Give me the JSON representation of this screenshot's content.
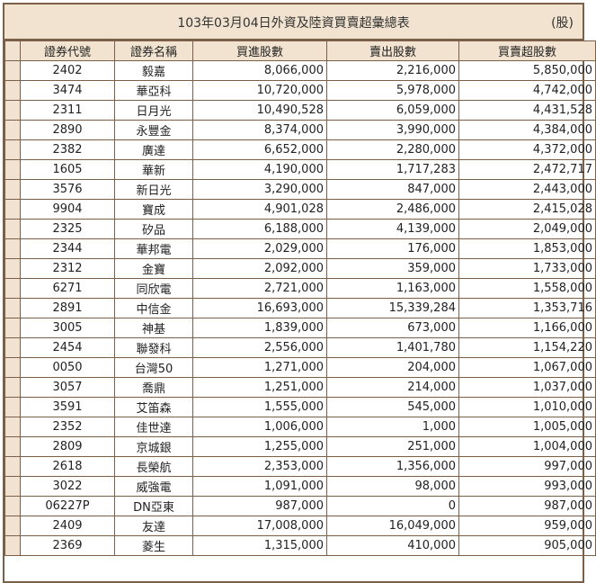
{
  "title": "103年03月04日外資及陸資買賣超彙總表",
  "unit": "(股)",
  "columns": [
    "證券代號",
    "證券名稱",
    "買進股數",
    "賣出股數",
    "買賣超股數"
  ],
  "rows": [
    {
      "code": "2402",
      "name": "毅嘉",
      "buy": "8,066,000",
      "sell": "2,216,000",
      "net": "5,850,000"
    },
    {
      "code": "3474",
      "name": "華亞科",
      "buy": "10,720,000",
      "sell": "5,978,000",
      "net": "4,742,000"
    },
    {
      "code": "2311",
      "name": "日月光",
      "buy": "10,490,528",
      "sell": "6,059,000",
      "net": "4,431,528"
    },
    {
      "code": "2890",
      "name": "永豐金",
      "buy": "8,374,000",
      "sell": "3,990,000",
      "net": "4,384,000"
    },
    {
      "code": "2382",
      "name": "廣達",
      "buy": "6,652,000",
      "sell": "2,280,000",
      "net": "4,372,000"
    },
    {
      "code": "1605",
      "name": "華新",
      "buy": "4,190,000",
      "sell": "1,717,283",
      "net": "2,472,717"
    },
    {
      "code": "3576",
      "name": "新日光",
      "buy": "3,290,000",
      "sell": "847,000",
      "net": "2,443,000"
    },
    {
      "code": "9904",
      "name": "寶成",
      "buy": "4,901,028",
      "sell": "2,486,000",
      "net": "2,415,028"
    },
    {
      "code": "2325",
      "name": "矽品",
      "buy": "6,188,000",
      "sell": "4,139,000",
      "net": "2,049,000"
    },
    {
      "code": "2344",
      "name": "華邦電",
      "buy": "2,029,000",
      "sell": "176,000",
      "net": "1,853,000"
    },
    {
      "code": "2312",
      "name": "金寶",
      "buy": "2,092,000",
      "sell": "359,000",
      "net": "1,733,000"
    },
    {
      "code": "6271",
      "name": "同欣電",
      "buy": "2,721,000",
      "sell": "1,163,000",
      "net": "1,558,000"
    },
    {
      "code": "2891",
      "name": "中信金",
      "buy": "16,693,000",
      "sell": "15,339,284",
      "net": "1,353,716"
    },
    {
      "code": "3005",
      "name": "神基",
      "buy": "1,839,000",
      "sell": "673,000",
      "net": "1,166,000"
    },
    {
      "code": "2454",
      "name": "聯發科",
      "buy": "2,556,000",
      "sell": "1,401,780",
      "net": "1,154,220"
    },
    {
      "code": "0050",
      "name": "台灣50",
      "buy": "1,271,000",
      "sell": "204,000",
      "net": "1,067,000"
    },
    {
      "code": "3057",
      "name": "喬鼎",
      "buy": "1,251,000",
      "sell": "214,000",
      "net": "1,037,000"
    },
    {
      "code": "3591",
      "name": "艾笛森",
      "buy": "1,555,000",
      "sell": "545,000",
      "net": "1,010,000"
    },
    {
      "code": "2352",
      "name": "佳世達",
      "buy": "1,006,000",
      "sell": "1,000",
      "net": "1,005,000"
    },
    {
      "code": "2809",
      "name": "京城銀",
      "buy": "1,255,000",
      "sell": "251,000",
      "net": "1,004,000"
    },
    {
      "code": "2618",
      "name": "長榮航",
      "buy": "2,353,000",
      "sell": "1,356,000",
      "net": "997,000"
    },
    {
      "code": "3022",
      "name": "威強電",
      "buy": "1,091,000",
      "sell": "98,000",
      "net": "993,000"
    },
    {
      "code": "06227P",
      "name": "DN亞東",
      "buy": "987,000",
      "sell": "0",
      "net": "987,000"
    },
    {
      "code": "2409",
      "name": "友達",
      "buy": "17,008,000",
      "sell": "16,049,000",
      "net": "959,000"
    },
    {
      "code": "2369",
      "name": "菱生",
      "buy": "1,315,000",
      "sell": "410,000",
      "net": "905,000"
    }
  ],
  "colors": {
    "header_bg": "#f1e3cf",
    "border": "#7a6048"
  }
}
